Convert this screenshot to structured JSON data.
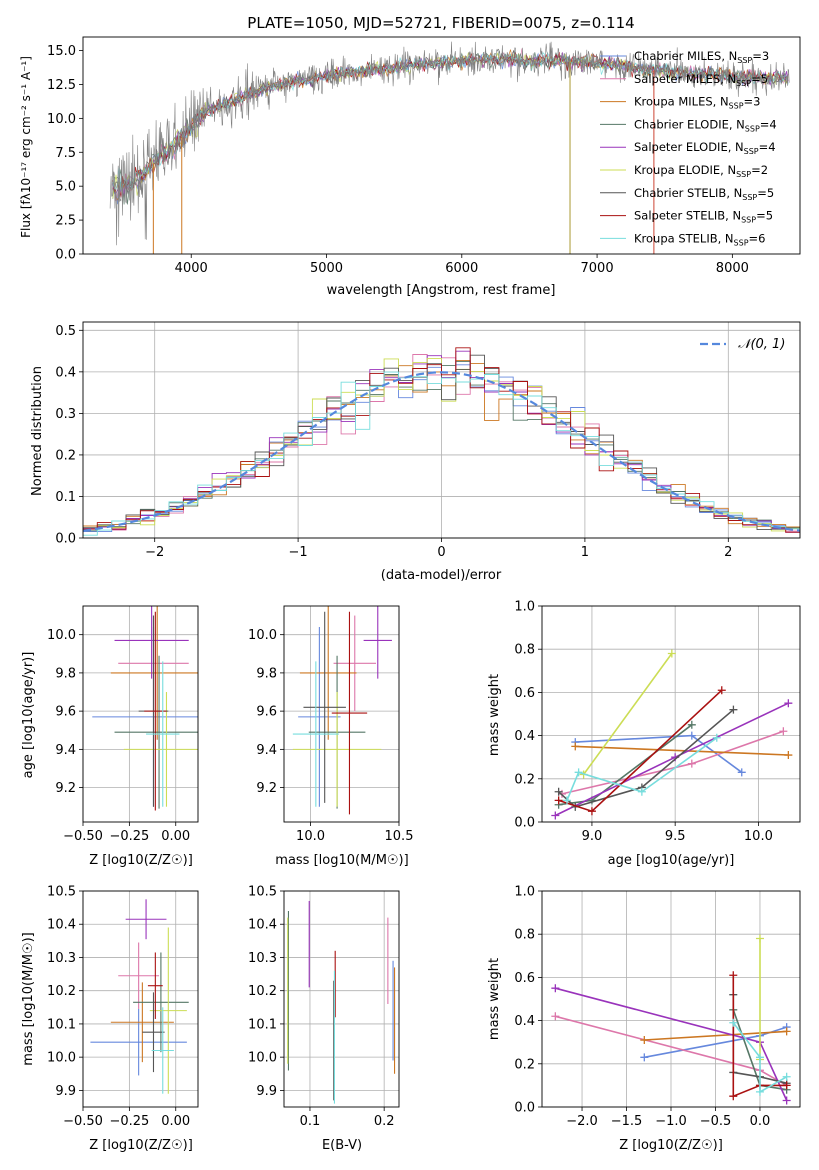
{
  "title": "PLATE=1050, MJD=52721, FIBERID=0075, z=0.114",
  "colors": {
    "Chabrier MILES": "#6688dd",
    "Salpeter MILES": "#dd77aa",
    "Kroupa MILES": "#cc7722",
    "Chabrier ELODIE": "#557766",
    "Salpeter ELODIE": "#9933bb",
    "Kroupa ELODIE": "#ccdd55",
    "Chabrier STELIB": "#555555",
    "Salpeter STELIB": "#aa1111",
    "Kroupa STELIB": "#77dddd",
    "data": "#808080",
    "normal": "#5588dd"
  },
  "chart_data": [
    {
      "id": "spectrum",
      "type": "line",
      "title": "PLATE=1050, MJD=52721, FIBERID=0075, z=0.114",
      "xlabel": "wavelength [Angstrom, rest frame]",
      "ylabel": "Flux [fλ10⁻¹⁷ erg cm⁻² s⁻¹ A⁻¹]",
      "xlim": [
        3200,
        8500
      ],
      "ylim": [
        0,
        16
      ],
      "xticks": [
        4000,
        5000,
        6000,
        7000,
        8000
      ],
      "yticks": [
        0.0,
        2.5,
        5.0,
        7.5,
        10.0,
        12.5,
        15.0
      ],
      "grid": false,
      "legend_position": "right",
      "continuum": [
        [
          3400,
          4.8
        ],
        [
          3500,
          5.0
        ],
        [
          3600,
          5.4
        ],
        [
          3700,
          6.5
        ],
        [
          3800,
          7.5
        ],
        [
          3900,
          8.3
        ],
        [
          4000,
          9.3
        ],
        [
          4100,
          10.4
        ],
        [
          4200,
          10.9
        ],
        [
          4300,
          11.2
        ],
        [
          4400,
          11.6
        ],
        [
          4500,
          12.1
        ],
        [
          4700,
          12.6
        ],
        [
          4900,
          12.9
        ],
        [
          5100,
          13.3
        ],
        [
          5300,
          13.5
        ],
        [
          5500,
          13.7
        ],
        [
          5700,
          14.0
        ],
        [
          5900,
          14.2
        ],
        [
          6100,
          14.3
        ],
        [
          6300,
          14.4
        ],
        [
          6500,
          14.2
        ],
        [
          6700,
          14.3
        ],
        [
          6900,
          14.1
        ],
        [
          7100,
          14.0
        ],
        [
          7300,
          13.7
        ],
        [
          7500,
          13.5
        ],
        [
          7700,
          13.3
        ],
        [
          7900,
          13.2
        ],
        [
          8000,
          13.0
        ],
        [
          8200,
          13.0
        ],
        [
          8400,
          13.0
        ]
      ],
      "series": [
        {
          "name": "Chabrier MILES, N_SSP=3",
          "legend": "Chabrier MILES, N",
          "n_ssp": "3"
        },
        {
          "name": "Salpeter MILES, N_SSP=5",
          "legend": "Salpeter MILES, N",
          "n_ssp": "5"
        },
        {
          "name": "Kroupa MILES, N_SSP=3",
          "legend": "Kroupa MILES, N",
          "n_ssp": "3"
        },
        {
          "name": "Chabrier ELODIE, N_SSP=4",
          "legend": "Chabrier ELODIE, N",
          "n_ssp": "4"
        },
        {
          "name": "Salpeter ELODIE, N_SSP=4",
          "legend": "Salpeter ELODIE, N",
          "n_ssp": "4"
        },
        {
          "name": "Kroupa ELODIE, N_SSP=2",
          "legend": "Kroupa ELODIE, N",
          "n_ssp": "2"
        },
        {
          "name": "Chabrier STELIB, N_SSP=5",
          "legend": "Chabrier STELIB, N",
          "n_ssp": "5"
        },
        {
          "name": "Salpeter STELIB, N_SSP=5",
          "legend": "Salpeter STELIB, N",
          "n_ssp": "5"
        },
        {
          "name": "Kroupa STELIB, N_SSP=6",
          "legend": "Kroupa STELIB, N",
          "n_ssp": "6"
        }
      ]
    },
    {
      "id": "residuals",
      "type": "line",
      "xlabel": "(data-model)/error",
      "ylabel": "Normed distribution",
      "xlim": [
        -2.5,
        2.5
      ],
      "ylim": [
        0,
        0.52
      ],
      "xticks": [
        -2,
        -1,
        0,
        1,
        2
      ],
      "yticks": [
        0.0,
        0.1,
        0.2,
        0.3,
        0.4,
        0.5
      ],
      "grid": true,
      "bin_width": 0.1,
      "normal_curve": {
        "name": "𝒩(0, 1)",
        "mean": 0,
        "sigma": 1
      },
      "legend_position": "top-right"
    },
    {
      "id": "age-vs-Z",
      "type": "scatter",
      "xlabel": "Z [log10(Z/Z☉)]",
      "ylabel": "age [log10(age/yr)]",
      "xlim": [
        -0.5,
        0.12
      ],
      "ylim": [
        9.02,
        10.15
      ],
      "xticks": [
        -0.5,
        -0.25,
        0.0
      ],
      "yticks": [
        9.2,
        9.4,
        9.6,
        9.8,
        10.0
      ],
      "points": [
        {
          "model": "Chabrier MILES",
          "x": -0.12,
          "xerr": 0.33,
          "y": 9.57,
          "yerr": 0.47
        },
        {
          "model": "Salpeter MILES",
          "x": -0.12,
          "xerr": 0.19,
          "y": 9.85,
          "yerr": 0.25
        },
        {
          "model": "Kroupa MILES",
          "x": -0.1,
          "xerr": 0.25,
          "y": 9.8,
          "yerr": 0.35
        },
        {
          "model": "Chabrier ELODIE",
          "x": -0.09,
          "xerr": 0.24,
          "y": 9.49,
          "yerr": 0.4
        },
        {
          "model": "Salpeter ELODIE",
          "x": -0.13,
          "xerr": 0.2,
          "y": 9.97,
          "yerr": 0.2
        },
        {
          "model": "Kroupa ELODIE",
          "x": -0.05,
          "xerr": 0.23,
          "y": 9.4,
          "yerr": 0.3
        },
        {
          "model": "Chabrier STELIB",
          "x": -0.12,
          "xerr": 0.08,
          "y": 9.6,
          "yerr": 0.5
        },
        {
          "model": "Salpeter STELIB",
          "x": -0.11,
          "xerr": 0.06,
          "y": 9.6,
          "yerr": 0.52
        },
        {
          "model": "Kroupa STELIB",
          "x": -0.07,
          "xerr": 0.09,
          "y": 9.48,
          "yerr": 0.38
        }
      ]
    },
    {
      "id": "age-vs-mass",
      "type": "scatter",
      "xlabel": "mass [log10(M/M☉)]",
      "ylabel": "",
      "xlim": [
        9.85,
        10.5
      ],
      "ylim": [
        9.02,
        10.15
      ],
      "xticks": [
        10.0,
        10.5
      ],
      "yticks": [
        9.2,
        9.4,
        9.6,
        9.8,
        10.0
      ],
      "points": [
        {
          "model": "Chabrier MILES",
          "x": 10.05,
          "xerr": 0.12,
          "y": 9.57,
          "yerr": 0.47
        },
        {
          "model": "Salpeter MILES",
          "x": 10.25,
          "xerr": 0.12,
          "y": 9.85,
          "yerr": 0.25
        },
        {
          "model": "Kroupa MILES",
          "x": 10.1,
          "xerr": 0.16,
          "y": 9.8,
          "yerr": 0.35
        },
        {
          "model": "Chabrier ELODIE",
          "x": 10.15,
          "xerr": 0.16,
          "y": 9.49,
          "yerr": 0.4
        },
        {
          "model": "Salpeter ELODIE",
          "x": 10.38,
          "xerr": 0.08,
          "y": 9.97,
          "yerr": 0.2
        },
        {
          "model": "Kroupa ELODIE",
          "x": 10.15,
          "xerr": 0.25,
          "y": 9.4,
          "yerr": 0.3
        },
        {
          "model": "Chabrier STELIB",
          "x": 10.08,
          "xerr": 0.12,
          "y": 9.62,
          "yerr": 0.5
        },
        {
          "model": "Salpeter STELIB",
          "x": 10.22,
          "xerr": 0.1,
          "y": 9.59,
          "yerr": 0.53
        },
        {
          "model": "Kroupa STELIB",
          "x": 10.03,
          "xerr": 0.13,
          "y": 9.48,
          "yerr": 0.38
        }
      ]
    },
    {
      "id": "weight-vs-age",
      "type": "line",
      "xlabel": "age [log10(age/yr)]",
      "ylabel": "mass weight",
      "xlim": [
        8.7,
        10.25
      ],
      "ylim": [
        0,
        1
      ],
      "xticks": [
        9.0,
        9.5,
        10.0
      ],
      "yticks": [
        0.0,
        0.2,
        0.4,
        0.6,
        0.8,
        1.0
      ],
      "grid": true,
      "series": [
        {
          "model": "Chabrier MILES",
          "x": [
            8.9,
            9.6,
            9.9
          ],
          "y": [
            0.37,
            0.4,
            0.23
          ]
        },
        {
          "model": "Salpeter MILES",
          "x": [
            8.82,
            9.6,
            10.15
          ],
          "y": [
            0.13,
            0.27,
            0.42
          ]
        },
        {
          "model": "Kroupa MILES",
          "x": [
            8.9,
            10.18
          ],
          "y": [
            0.35,
            0.31
          ]
        },
        {
          "model": "Chabrier ELODIE",
          "x": [
            8.8,
            9.0,
            9.6
          ],
          "y": [
            0.08,
            0.1,
            0.45
          ]
        },
        {
          "model": "Salpeter ELODIE",
          "x": [
            8.78,
            9.5,
            10.18
          ],
          "y": [
            0.03,
            0.3,
            0.55
          ]
        },
        {
          "model": "Kroupa ELODIE",
          "x": [
            8.95,
            9.48
          ],
          "y": [
            0.22,
            0.78
          ]
        },
        {
          "model": "Chabrier STELIB",
          "x": [
            8.8,
            8.9,
            9.3,
            9.85
          ],
          "y": [
            0.14,
            0.07,
            0.16,
            0.52
          ]
        },
        {
          "model": "Salpeter STELIB",
          "x": [
            8.8,
            9.0,
            9.78
          ],
          "y": [
            0.1,
            0.05,
            0.61
          ]
        },
        {
          "model": "Kroupa STELIB",
          "x": [
            8.85,
            8.92,
            9.3,
            9.75
          ],
          "y": [
            0.1,
            0.23,
            0.14,
            0.39
          ]
        }
      ]
    },
    {
      "id": "mass-vs-Z",
      "type": "scatter",
      "xlabel": "Z [log10(Z/Z☉)]",
      "ylabel": "mass [log10(M/M☉)]",
      "xlim": [
        -0.5,
        0.12
      ],
      "ylim": [
        9.85,
        10.5
      ],
      "xticks": [
        -0.5,
        -0.25,
        0.0
      ],
      "yticks": [
        9.9,
        10.0,
        10.1,
        10.2,
        10.3,
        10.4,
        10.5
      ],
      "points": [
        {
          "model": "Chabrier MILES",
          "x": -0.2,
          "xerr": 0.26,
          "y": 10.045,
          "yerr": 0.1
        },
        {
          "model": "Salpeter MILES",
          "x": -0.2,
          "xerr": 0.11,
          "y": 10.245,
          "yerr": 0.1
        },
        {
          "model": "Kroupa MILES",
          "x": -0.18,
          "xerr": 0.17,
          "y": 10.105,
          "yerr": 0.12
        },
        {
          "model": "Chabrier ELODIE",
          "x": -0.08,
          "xerr": 0.15,
          "y": 10.165,
          "yerr": 0.15
        },
        {
          "model": "Salpeter ELODIE",
          "x": -0.16,
          "xerr": 0.11,
          "y": 10.415,
          "yerr": 0.06
        },
        {
          "model": "Kroupa ELODIE",
          "x": -0.04,
          "xerr": 0.1,
          "y": 10.14,
          "yerr": 0.25
        },
        {
          "model": "Chabrier STELIB",
          "x": -0.12,
          "xerr": 0.06,
          "y": 10.075,
          "yerr": 0.12
        },
        {
          "model": "Salpeter STELIB",
          "x": -0.11,
          "xerr": 0.04,
          "y": 10.215,
          "yerr": 0.1
        },
        {
          "model": "Kroupa STELIB",
          "x": -0.07,
          "xerr": 0.06,
          "y": 10.02,
          "yerr": 0.13
        }
      ]
    },
    {
      "id": "mass-vs-EBV",
      "type": "scatter",
      "xlabel": "E(B-V)",
      "ylabel": "",
      "xlim": [
        0.065,
        0.22
      ],
      "ylim": [
        9.85,
        10.5
      ],
      "xticks": [
        0.1,
        0.2
      ],
      "yticks": [
        9.9,
        10.0,
        10.1,
        10.2,
        10.3,
        10.4,
        10.5
      ],
      "points": [
        {
          "model": "Chabrier MILES",
          "x": 0.212,
          "y": 10.14,
          "yerr": 0.15
        },
        {
          "model": "Salpeter MILES",
          "x": 0.205,
          "y": 10.29,
          "yerr": 0.13
        },
        {
          "model": "Kroupa MILES",
          "x": 0.214,
          "y": 10.11,
          "yerr": 0.16
        },
        {
          "model": "Chabrier ELODIE",
          "x": 0.071,
          "y": 10.2,
          "yerr": 0.24
        },
        {
          "model": "Salpeter ELODIE",
          "x": 0.099,
          "y": 10.34,
          "yerr": 0.13
        },
        {
          "model": "Kroupa ELODIE",
          "x": 0.07,
          "y": 10.2,
          "yerr": 0.22
        },
        {
          "model": "Chabrier STELIB",
          "x": 0.132,
          "y": 10.05,
          "yerr": 0.18
        },
        {
          "model": "Salpeter STELIB",
          "x": 0.134,
          "y": 10.22,
          "yerr": 0.1
        },
        {
          "model": "Kroupa STELIB",
          "x": 0.133,
          "y": 10.06,
          "yerr": 0.2
        }
      ]
    },
    {
      "id": "weight-vs-Z",
      "type": "line",
      "xlabel": "Z [log10(Z/Z☉)]",
      "ylabel": "mass weight",
      "xlim": [
        -2.45,
        0.45
      ],
      "ylim": [
        0,
        1
      ],
      "xticks": [
        -2.0,
        -1.5,
        -1.0,
        -0.5,
        0.0
      ],
      "yticks": [
        0.0,
        0.2,
        0.4,
        0.6,
        0.8,
        1.0
      ],
      "grid": true,
      "series": [
        {
          "model": "Chabrier MILES",
          "x": [
            -1.3,
            0.0,
            0.3
          ],
          "y": [
            0.23,
            0.33,
            0.37
          ]
        },
        {
          "model": "Salpeter MILES",
          "x": [
            -2.3,
            0.0,
            0.3
          ],
          "y": [
            0.42,
            0.17,
            0.1
          ]
        },
        {
          "model": "Kroupa MILES",
          "x": [
            -1.3,
            0.3
          ],
          "y": [
            0.31,
            0.35
          ]
        },
        {
          "model": "Chabrier ELODIE",
          "x": [
            -0.3,
            0.0,
            0.3
          ],
          "y": [
            0.45,
            0.1,
            0.08
          ]
        },
        {
          "model": "Salpeter ELODIE",
          "x": [
            -2.3,
            0.0,
            0.3
          ],
          "y": [
            0.55,
            0.3,
            0.03
          ]
        },
        {
          "model": "Kroupa ELODIE",
          "x": [
            0.0,
            0.0
          ],
          "y": [
            0.78,
            0.22
          ]
        },
        {
          "model": "Chabrier STELIB",
          "x": [
            -0.3,
            -0.3,
            0.0,
            0.3
          ],
          "y": [
            0.52,
            0.16,
            0.14,
            0.11
          ]
        },
        {
          "model": "Salpeter STELIB",
          "x": [
            -0.3,
            -0.3,
            0.0,
            0.3
          ],
          "y": [
            0.61,
            0.05,
            0.1,
            0.1
          ]
        },
        {
          "model": "Kroupa STELIB",
          "x": [
            -0.3,
            0.0,
            0.0,
            0.3
          ],
          "y": [
            0.39,
            0.23,
            0.07,
            0.14
          ]
        }
      ]
    }
  ]
}
